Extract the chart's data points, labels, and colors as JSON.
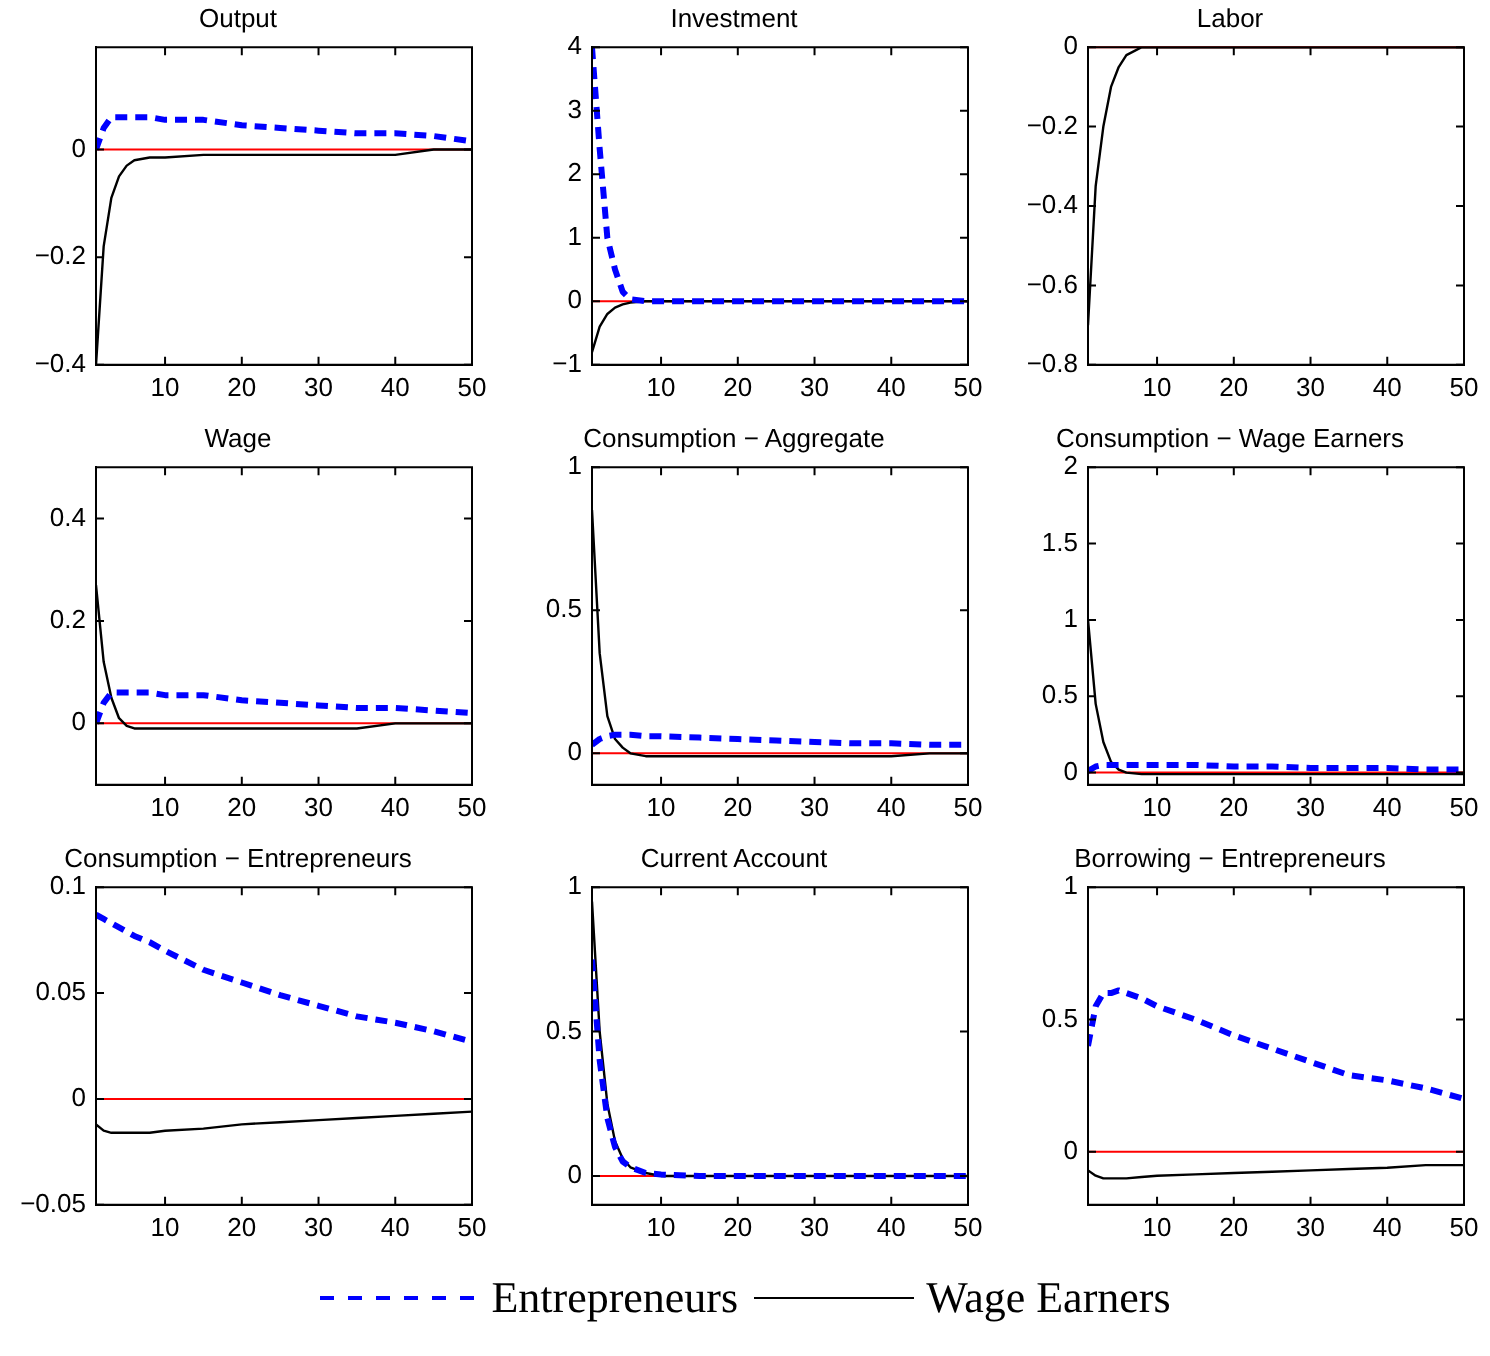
{
  "chart_data": [
    {
      "type": "line",
      "title": "Output",
      "x": [
        1,
        2,
        3,
        4,
        5,
        6,
        8,
        10,
        15,
        20,
        25,
        30,
        35,
        40,
        45,
        50
      ],
      "xlim": [
        1,
        50
      ],
      "xticks": [
        10,
        20,
        30,
        40,
        50
      ],
      "ylim": [
        -0.4,
        0.19
      ],
      "yticks": [
        -0.4,
        -0.2,
        0
      ],
      "grid": false,
      "marker": "none",
      "legend": false,
      "ref_lines": [
        {
          "axis": "y",
          "value": 0,
          "color": "#ff0000"
        }
      ],
      "series": [
        {
          "color": "#0000ff",
          "line_style": "dashed",
          "values": [
            0.0,
            0.04,
            0.06,
            0.06,
            0.06,
            0.06,
            0.06,
            0.055,
            0.055,
            0.045,
            0.04,
            0.035,
            0.03,
            0.03,
            0.025,
            0.015
          ]
        },
        {
          "color": "#000000",
          "line_style": "solid",
          "values": [
            -0.4,
            -0.18,
            -0.09,
            -0.05,
            -0.03,
            -0.02,
            -0.015,
            -0.015,
            -0.01,
            -0.01,
            -0.01,
            -0.01,
            -0.01,
            -0.01,
            0,
            0
          ]
        }
      ]
    },
    {
      "type": "line",
      "title": "Investment",
      "x": [
        1,
        2,
        3,
        4,
        5,
        6,
        8,
        10,
        15,
        20,
        25,
        30,
        35,
        40,
        45,
        50
      ],
      "xlim": [
        1,
        50
      ],
      "xticks": [
        10,
        20,
        30,
        40,
        50
      ],
      "ylim": [
        -1,
        4
      ],
      "yticks": [
        -1,
        0,
        1,
        2,
        3,
        4
      ],
      "grid": false,
      "marker": "none",
      "legend": false,
      "ref_lines": [
        {
          "axis": "y",
          "value": 0,
          "color": "#ff0000"
        }
      ],
      "series": [
        {
          "color": "#0000ff",
          "line_style": "dashed",
          "values": [
            4,
            2.4,
            1,
            0.5,
            0.15,
            0.03,
            0,
            0,
            0,
            0,
            0,
            0,
            0,
            0,
            0,
            0
          ]
        },
        {
          "color": "#000000",
          "line_style": "solid",
          "values": [
            -0.8,
            -0.4,
            -0.2,
            -0.1,
            -0.05,
            -0.02,
            0,
            0,
            0,
            0,
            0,
            0,
            0,
            0,
            0,
            0
          ]
        }
      ]
    },
    {
      "type": "line",
      "title": "Labor",
      "x": [
        1,
        2,
        3,
        4,
        5,
        6,
        8,
        10,
        15,
        20,
        25,
        30,
        35,
        40,
        45,
        50
      ],
      "xlim": [
        1,
        50
      ],
      "xticks": [
        10,
        20,
        30,
        40,
        50
      ],
      "ylim": [
        -0.8,
        0
      ],
      "yticks": [
        -0.8,
        -0.6,
        -0.4,
        -0.2,
        0
      ],
      "grid": false,
      "marker": "none",
      "legend": false,
      "ref_lines": [
        {
          "axis": "y",
          "value": 0,
          "color": "#ff0000"
        }
      ],
      "series": [
        {
          "color": "#000000",
          "line_style": "solid",
          "values": [
            -0.7,
            -0.35,
            -0.2,
            -0.1,
            -0.05,
            -0.02,
            0,
            0,
            0,
            0,
            0,
            0,
            0,
            0,
            0,
            0
          ]
        }
      ]
    },
    {
      "type": "line",
      "title": "Wage",
      "x": [
        1,
        2,
        3,
        4,
        5,
        6,
        8,
        10,
        15,
        20,
        25,
        30,
        35,
        40,
        45,
        50
      ],
      "xlim": [
        1,
        50
      ],
      "xticks": [
        10,
        20,
        30,
        40,
        50
      ],
      "ylim": [
        -0.12,
        0.5
      ],
      "yticks": [
        0,
        0.2,
        0.4
      ],
      "grid": false,
      "marker": "none",
      "legend": false,
      "ref_lines": [
        {
          "axis": "y",
          "value": 0,
          "color": "#ff0000"
        }
      ],
      "series": [
        {
          "color": "#0000ff",
          "line_style": "dashed",
          "values": [
            0,
            0.04,
            0.06,
            0.06,
            0.06,
            0.06,
            0.06,
            0.055,
            0.055,
            0.045,
            0.04,
            0.035,
            0.03,
            0.03,
            0.025,
            0.02
          ]
        },
        {
          "color": "#000000",
          "line_style": "solid",
          "values": [
            0.27,
            0.12,
            0.05,
            0.01,
            -0.005,
            -0.01,
            -0.01,
            -0.01,
            -0.01,
            -0.01,
            -0.01,
            -0.01,
            -0.01,
            0,
            0,
            0
          ]
        }
      ]
    },
    {
      "type": "line",
      "title": "Consumption − Aggregate",
      "x": [
        1,
        2,
        3,
        4,
        5,
        6,
        8,
        10,
        15,
        20,
        25,
        30,
        35,
        40,
        45,
        50
      ],
      "xlim": [
        1,
        50
      ],
      "xticks": [
        10,
        20,
        30,
        40,
        50
      ],
      "ylim": [
        -0.11,
        1
      ],
      "yticks": [
        0,
        0.5,
        1
      ],
      "grid": false,
      "marker": "none",
      "legend": false,
      "ref_lines": [
        {
          "axis": "y",
          "value": 0,
          "color": "#ff0000"
        }
      ],
      "series": [
        {
          "color": "#0000ff",
          "line_style": "dashed",
          "values": [
            0.03,
            0.05,
            0.06,
            0.065,
            0.065,
            0.065,
            0.06,
            0.06,
            0.055,
            0.05,
            0.045,
            0.04,
            0.035,
            0.035,
            0.03,
            0.03
          ]
        },
        {
          "color": "#000000",
          "line_style": "solid",
          "values": [
            0.85,
            0.35,
            0.13,
            0.05,
            0.02,
            0,
            -0.01,
            -0.01,
            -0.01,
            -0.01,
            -0.01,
            -0.01,
            -0.01,
            -0.01,
            0,
            0
          ]
        }
      ]
    },
    {
      "type": "line",
      "title": "Consumption − Wage Earners",
      "x": [
        1,
        2,
        3,
        4,
        5,
        6,
        8,
        10,
        15,
        20,
        25,
        30,
        35,
        40,
        45,
        50
      ],
      "xlim": [
        1,
        50
      ],
      "xticks": [
        10,
        20,
        30,
        40,
        50
      ],
      "ylim": [
        -0.08,
        2
      ],
      "yticks": [
        0,
        0.5,
        1,
        1.5,
        2
      ],
      "grid": false,
      "marker": "none",
      "legend": false,
      "ref_lines": [
        {
          "axis": "y",
          "value": 0,
          "color": "#ff0000"
        }
      ],
      "series": [
        {
          "color": "#0000ff",
          "line_style": "dashed",
          "values": [
            0.01,
            0.04,
            0.05,
            0.05,
            0.05,
            0.05,
            0.05,
            0.05,
            0.05,
            0.04,
            0.04,
            0.03,
            0.03,
            0.03,
            0.02,
            0.02
          ]
        },
        {
          "color": "#000000",
          "line_style": "solid",
          "values": [
            1.0,
            0.45,
            0.2,
            0.07,
            0.02,
            0,
            -0.01,
            -0.01,
            -0.01,
            -0.01,
            -0.01,
            -0.01,
            -0.01,
            -0.01,
            -0.01,
            -0.01
          ]
        }
      ]
    },
    {
      "type": "line",
      "title": "Consumption − Entrepreneurs",
      "x": [
        1,
        2,
        3,
        4,
        5,
        6,
        8,
        10,
        15,
        20,
        25,
        30,
        35,
        40,
        45,
        50
      ],
      "xlim": [
        1,
        50
      ],
      "xticks": [
        10,
        20,
        30,
        40,
        50
      ],
      "ylim": [
        -0.05,
        0.1
      ],
      "yticks": [
        -0.05,
        0,
        0.05,
        0.1
      ],
      "grid": false,
      "marker": "none",
      "legend": false,
      "ref_lines": [
        {
          "axis": "y",
          "value": 0,
          "color": "#ff0000"
        }
      ],
      "series": [
        {
          "color": "#0000ff",
          "line_style": "dashed",
          "values": [
            0.087,
            0.085,
            0.083,
            0.081,
            0.079,
            0.077,
            0.074,
            0.07,
            0.061,
            0.055,
            0.049,
            0.044,
            0.039,
            0.036,
            0.032,
            0.027
          ]
        },
        {
          "color": "#000000",
          "line_style": "solid",
          "values": [
            -0.012,
            -0.015,
            -0.016,
            -0.016,
            -0.016,
            -0.016,
            -0.016,
            -0.015,
            -0.014,
            -0.012,
            -0.011,
            -0.01,
            -0.009,
            -0.008,
            -0.007,
            -0.006
          ]
        }
      ]
    },
    {
      "type": "line",
      "title": "Current Account",
      "x": [
        1,
        2,
        3,
        4,
        5,
        6,
        8,
        10,
        15,
        20,
        25,
        30,
        35,
        40,
        45,
        50
      ],
      "xlim": [
        1,
        50
      ],
      "xticks": [
        10,
        20,
        30,
        40,
        50
      ],
      "ylim": [
        -0.1,
        1
      ],
      "yticks": [
        0,
        0.5,
        1
      ],
      "grid": false,
      "marker": "none",
      "legend": false,
      "ref_lines": [
        {
          "axis": "y",
          "value": 0,
          "color": "#ff0000"
        }
      ],
      "series": [
        {
          "color": "#0000ff",
          "line_style": "dashed",
          "values": [
            0.75,
            0.4,
            0.2,
            0.1,
            0.05,
            0.03,
            0.01,
            0.005,
            0,
            0,
            0,
            0,
            0,
            0,
            0,
            0
          ]
        },
        {
          "color": "#000000",
          "line_style": "solid",
          "values": [
            0.95,
            0.5,
            0.25,
            0.12,
            0.06,
            0.03,
            0.01,
            0,
            0,
            0,
            0,
            0,
            0,
            0,
            0,
            0
          ]
        }
      ]
    },
    {
      "type": "line",
      "title": "Borrowing − Entrepreneurs",
      "x": [
        1,
        2,
        3,
        4,
        5,
        6,
        8,
        10,
        15,
        20,
        25,
        30,
        35,
        40,
        45,
        50
      ],
      "xlim": [
        1,
        50
      ],
      "xticks": [
        10,
        20,
        30,
        40,
        50
      ],
      "ylim": [
        -0.2,
        1
      ],
      "yticks": [
        0,
        0.5,
        1
      ],
      "grid": false,
      "marker": "none",
      "legend": "bottom",
      "ref_lines": [
        {
          "axis": "y",
          "value": 0,
          "color": "#ff0000"
        }
      ],
      "series": [
        {
          "name": "Entrepreneurs",
          "color": "#0000ff",
          "line_style": "dashed",
          "values": [
            0.4,
            0.55,
            0.6,
            0.6,
            0.61,
            0.6,
            0.58,
            0.55,
            0.5,
            0.44,
            0.39,
            0.34,
            0.29,
            0.27,
            0.24,
            0.2
          ]
        },
        {
          "name": "Wage Earners",
          "color": "#000000",
          "line_style": "solid",
          "values": [
            -0.07,
            -0.09,
            -0.1,
            -0.1,
            -0.1,
            -0.1,
            -0.095,
            -0.09,
            -0.085,
            -0.08,
            -0.075,
            -0.07,
            -0.065,
            -0.06,
            -0.05,
            -0.05
          ]
        }
      ]
    }
  ]
}
